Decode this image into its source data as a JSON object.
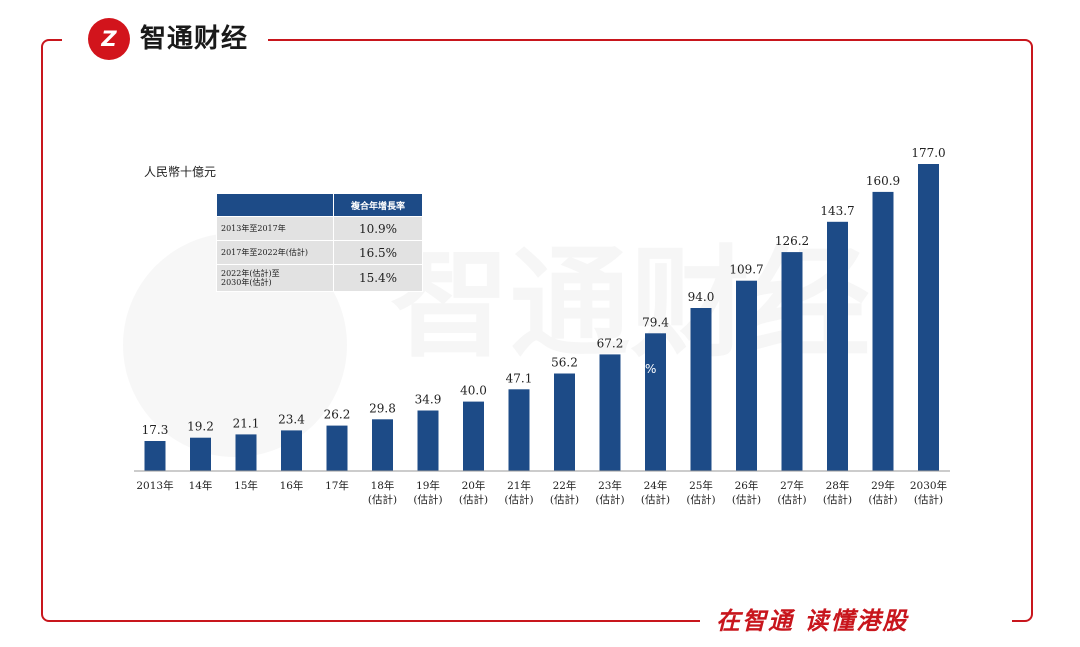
{
  "brand": {
    "logo_text": "Z",
    "name": "智通财经",
    "slogan": "在智通 读懂港股",
    "watermark": "智通财经",
    "accent_color": "#c8161d"
  },
  "chart_data": {
    "type": "bar",
    "title": "",
    "unit_label": "人民幣十億元",
    "bar_color": "#1d4b87",
    "categories": [
      [
        "2013年"
      ],
      [
        "14年"
      ],
      [
        "15年"
      ],
      [
        "16年"
      ],
      [
        "17年"
      ],
      [
        "18年",
        "(估計)"
      ],
      [
        "19年",
        "(估計)"
      ],
      [
        "20年",
        "(估計)"
      ],
      [
        "21年",
        "(估計)"
      ],
      [
        "22年",
        "(估計)"
      ],
      [
        "23年",
        "(估計)"
      ],
      [
        "24年",
        "(估計)"
      ],
      [
        "25年",
        "(估計)"
      ],
      [
        "26年",
        "(估計)"
      ],
      [
        "27年",
        "(估計)"
      ],
      [
        "28年",
        "(估計)"
      ],
      [
        "29年",
        "(估計)"
      ],
      [
        "2030年",
        "(估計)"
      ]
    ],
    "values": [
      17.3,
      19.2,
      21.1,
      23.4,
      26.2,
      29.8,
      34.9,
      40.0,
      47.1,
      56.2,
      67.2,
      79.4,
      94.0,
      109.7,
      126.2,
      143.7,
      160.9,
      177.0
    ],
    "value_labels": [
      "17.3",
      "19.2",
      "21.1",
      "23.4",
      "26.2",
      "29.8",
      "34.9",
      "40.0",
      "47.1",
      "56.2",
      "67.2",
      "79.4",
      "94.0",
      "109.7",
      "126.2",
      "143.7",
      "160.9",
      "177.0"
    ],
    "ylim": [
      0,
      177.0
    ],
    "grid": false,
    "legend": "none",
    "cagr_table": {
      "header": "複合年增長率",
      "rows": [
        {
          "period": [
            "2013年至2017年"
          ],
          "rate": "10.9%"
        },
        {
          "period": [
            "2017年至2022年(估計)"
          ],
          "rate": "16.5%"
        },
        {
          "period": [
            "2022年(估計)至",
            "2030年(估計)"
          ],
          "rate": "15.4%"
        }
      ]
    },
    "stray_mark": "%"
  }
}
